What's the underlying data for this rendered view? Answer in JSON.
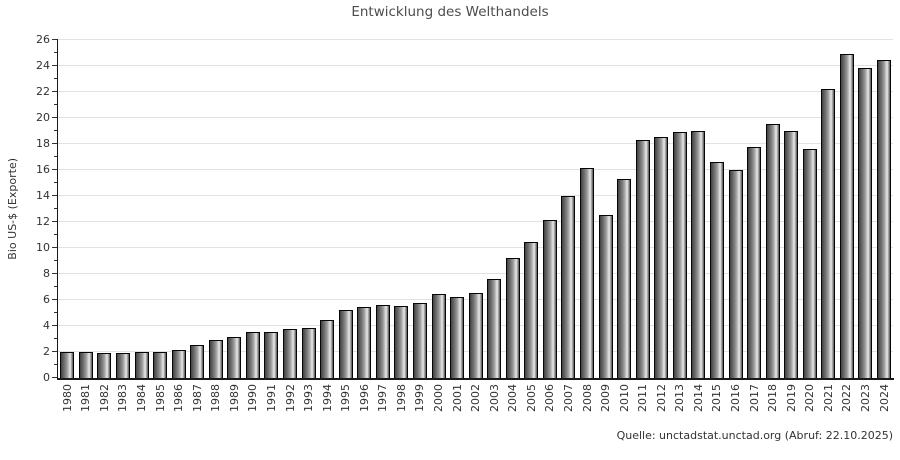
{
  "title": "Entwicklung des Welthandels",
  "source_note": "Quelle: unctadstat.unctad.org (Abruf: 22.10.2025)",
  "colors": {
    "background": "#ffffff",
    "title_text": "#4d4d4d",
    "axis_text": "#333333",
    "axis_line": "#1a1a1a",
    "gridline": "#e2e2e2",
    "bar_dark": "#434343",
    "bar_light": "#e9e9e9",
    "bar_outline": "#060606"
  },
  "chart_data": {
    "type": "bar",
    "title": "Entwicklung des Welthandels",
    "xlabel": "",
    "ylabel": "Bio US-$ (Exporte)",
    "ylim": [
      0,
      26
    ],
    "ytick_step": 2,
    "grid": true,
    "legend": "none",
    "categories": [
      "1980",
      "1981",
      "1982",
      "1983",
      "1984",
      "1985",
      "1986",
      "1987",
      "1988",
      "1989",
      "1990",
      "1991",
      "1992",
      "1993",
      "1994",
      "1995",
      "1996",
      "1997",
      "1998",
      "1999",
      "2000",
      "2001",
      "2002",
      "2003",
      "2004",
      "2005",
      "2006",
      "2007",
      "2008",
      "2009",
      "2010",
      "2011",
      "2012",
      "2013",
      "2014",
      "2015",
      "2016",
      "2017",
      "2018",
      "2019",
      "2020",
      "2021",
      "2022",
      "2023",
      "2024"
    ],
    "values": [
      2.0,
      2.0,
      1.9,
      1.85,
      1.95,
      1.95,
      2.15,
      2.5,
      2.9,
      3.1,
      3.5,
      3.5,
      3.75,
      3.8,
      4.4,
      5.2,
      5.4,
      5.6,
      5.5,
      5.7,
      6.45,
      6.2,
      6.5,
      7.55,
      9.2,
      10.45,
      12.1,
      14.0,
      16.1,
      12.5,
      15.3,
      18.3,
      18.5,
      18.9,
      19.0,
      16.55,
      16.0,
      17.7,
      19.5,
      19.0,
      17.6,
      22.2,
      24.9,
      23.8,
      24.45
    ],
    "source": "Quelle: unctadstat.unctad.org (Abruf: 22.10.2025)"
  }
}
